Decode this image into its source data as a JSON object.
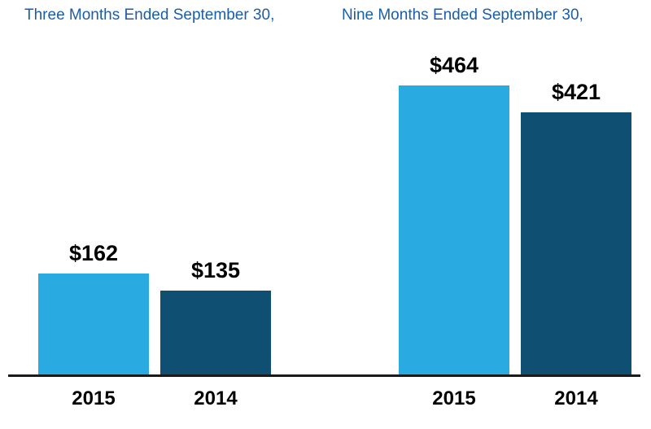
{
  "chart_data": {
    "type": "bar",
    "title": "",
    "xlabel": "",
    "ylabel": "",
    "ylim": [
      0,
      480
    ],
    "grid": false,
    "legend_position": "none",
    "groups": [
      {
        "title": "Three Months Ended September 30,",
        "categories": [
          "2015",
          "2014"
        ],
        "values": [
          162,
          135
        ],
        "labels": [
          "$162",
          "$135"
        ]
      },
      {
        "title": "Nine Months Ended September 30,",
        "categories": [
          "2015",
          "2014"
        ],
        "values": [
          464,
          421
        ],
        "labels": [
          "$464",
          "$421"
        ]
      }
    ],
    "series_colors": {
      "2015": "#29ABE2",
      "2014": "#0E4F72"
    }
  },
  "colors": {
    "title_text": "#1B5EA6",
    "value_label_text": "#000000",
    "tick_label_text": "#000000",
    "axis_line": "#1a1a1a",
    "background": "#ffffff"
  }
}
